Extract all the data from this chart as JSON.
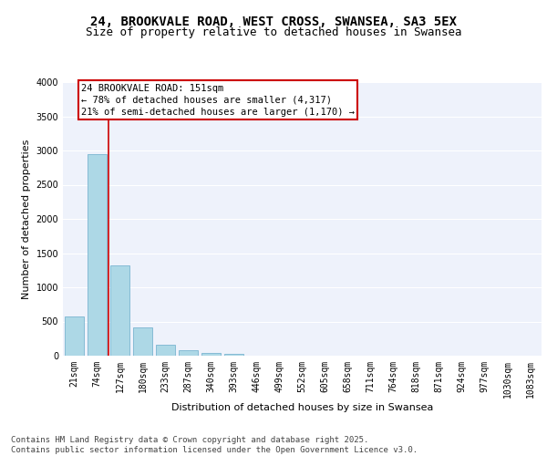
{
  "title1": "24, BROOKVALE ROAD, WEST CROSS, SWANSEA, SA3 5EX",
  "title2": "Size of property relative to detached houses in Swansea",
  "xlabel": "Distribution of detached houses by size in Swansea",
  "ylabel": "Number of detached properties",
  "categories": [
    "21sqm",
    "74sqm",
    "127sqm",
    "180sqm",
    "233sqm",
    "287sqm",
    "340sqm",
    "393sqm",
    "446sqm",
    "499sqm",
    "552sqm",
    "605sqm",
    "658sqm",
    "711sqm",
    "764sqm",
    "818sqm",
    "871sqm",
    "924sqm",
    "977sqm",
    "1030sqm",
    "1083sqm"
  ],
  "values": [
    580,
    2950,
    1320,
    420,
    155,
    75,
    45,
    30,
    0,
    0,
    0,
    0,
    0,
    0,
    0,
    0,
    0,
    0,
    0,
    0,
    0
  ],
  "bar_color": "#add8e6",
  "bar_edge_color": "#7ab5d0",
  "vline_color": "#cc0000",
  "annotation_text": "24 BROOKVALE ROAD: 151sqm\n← 78% of detached houses are smaller (4,317)\n21% of semi-detached houses are larger (1,170) →",
  "annotation_box_color": "#cc0000",
  "ylim": [
    0,
    4000
  ],
  "yticks": [
    0,
    500,
    1000,
    1500,
    2000,
    2500,
    3000,
    3500,
    4000
  ],
  "background_color": "#eef2fb",
  "grid_color": "#ffffff",
  "footer": "Contains HM Land Registry data © Crown copyright and database right 2025.\nContains public sector information licensed under the Open Government Licence v3.0.",
  "title_fontsize": 10,
  "subtitle_fontsize": 9,
  "axis_label_fontsize": 8,
  "tick_fontsize": 7,
  "annotation_fontsize": 7.5,
  "footer_fontsize": 6.5
}
